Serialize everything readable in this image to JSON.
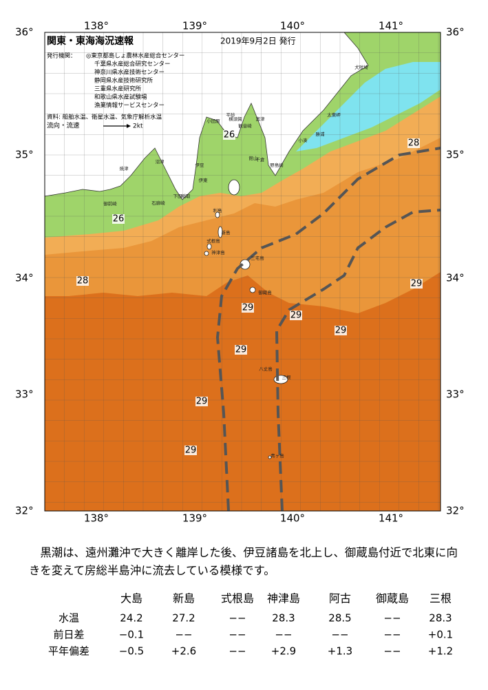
{
  "header": {
    "title": "関東・東海海況速報",
    "date": "2019年9月2日 発行",
    "issuers_label": "発行機関：",
    "issuers": [
      "◎東京都島しょ農林水産総合センター",
      "千葉県水産総合研究センター",
      "神奈川県水産技術センター",
      "静岡県水産技術研究所",
      "三重県水産研究所",
      "和歌山県水産試験場",
      "漁業情報サービスセンター"
    ],
    "sources": "資料: 船舶水温、衛星水温、気象庁解析水温",
    "legend_label": "流向・流速",
    "legend_speed": "2kt"
  },
  "map": {
    "lon_labels": [
      "138°",
      "139°",
      "140°",
      "141°"
    ],
    "lat_labels": [
      "36°",
      "35°",
      "34°",
      "33°",
      "32°"
    ],
    "temp_labels": [
      "28",
      "26",
      "26",
      "28",
      "29",
      "29",
      "29",
      "29",
      "29",
      "29",
      "29"
    ],
    "place_names": [
      "犬吠埼",
      "太東岬",
      "勝浦",
      "小湊",
      "平砂",
      "小田原",
      "横須賀",
      "観音崎",
      "富津",
      "館山",
      "千倉",
      "野島崎",
      "沼津",
      "伊豆",
      "伊東",
      "焼津",
      "御前崎",
      "稲取",
      "下田",
      "石廊崎",
      "利島",
      "新島",
      "式根島",
      "神津島",
      "三宅島",
      "御蔵島",
      "八丈島",
      "三根",
      "青ヶ島"
    ]
  },
  "summary": "黒潮は、遠州灘沖で大きく離岸した後、伊豆諸島を北上し、御蔵島付近で北東に向きを変えて房総半島沖に流去している模様です。",
  "table": {
    "columns": [
      "大島",
      "新島",
      "式根島",
      "神津島",
      "阿古",
      "御蔵島",
      "三根"
    ],
    "rows": [
      [
        "水温",
        "24.2",
        "27.2",
        "−−",
        "28.3",
        "28.5",
        "−−",
        "28.3"
      ],
      [
        "前日差",
        "−0.1",
        "−−",
        "−−",
        "−−",
        "−−",
        "−−",
        "+0.1"
      ],
      [
        "平年偏差",
        "−0.5",
        "+2.6",
        "−−",
        "+2.9",
        "+1.3",
        "−−",
        "+1.2"
      ]
    ]
  }
}
